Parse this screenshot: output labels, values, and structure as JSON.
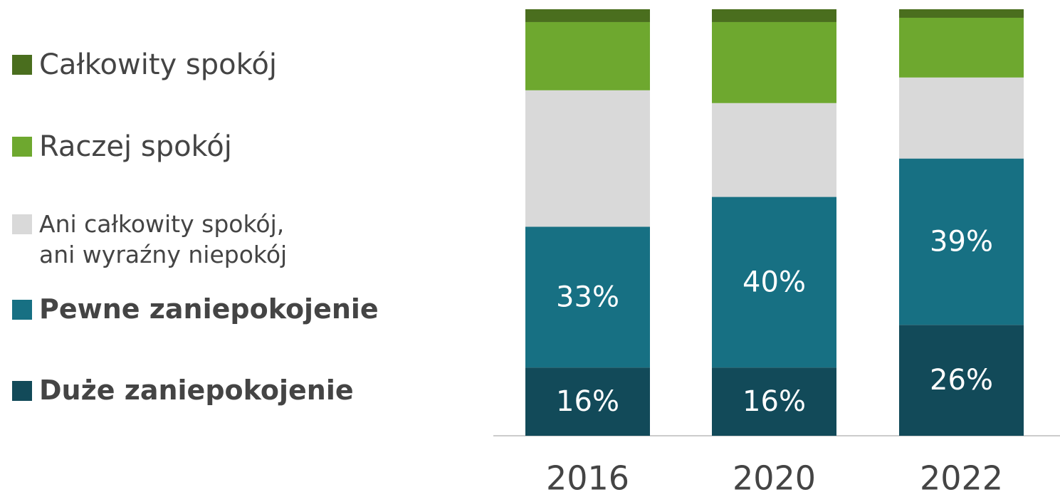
{
  "chart_data": {
    "type": "stacked-bar",
    "categories": [
      "2016",
      "2020",
      "2022"
    ],
    "series": [
      {
        "name": "Duże zaniepokojenie",
        "color": "#124a59",
        "values": [
          16,
          16,
          26
        ],
        "value_labels": [
          "16%",
          "16%",
          "26%"
        ]
      },
      {
        "name": "Pewne zaniepokojenie",
        "color": "#177083",
        "values": [
          33,
          40,
          39
        ],
        "value_labels": [
          "33%",
          "40%",
          "39%"
        ]
      },
      {
        "name": "Ani całkowity spokój,\nani wyraźny niepokój",
        "color": "#d9d9d9",
        "values": [
          32,
          22,
          19
        ]
      },
      {
        "name": "Raczej spokój",
        "color": "#6ea82f",
        "values": [
          16,
          19,
          14
        ]
      },
      {
        "name": "Całkowity spokój",
        "color": "#4a6e1e",
        "values": [
          3,
          3,
          2
        ]
      }
    ]
  }
}
